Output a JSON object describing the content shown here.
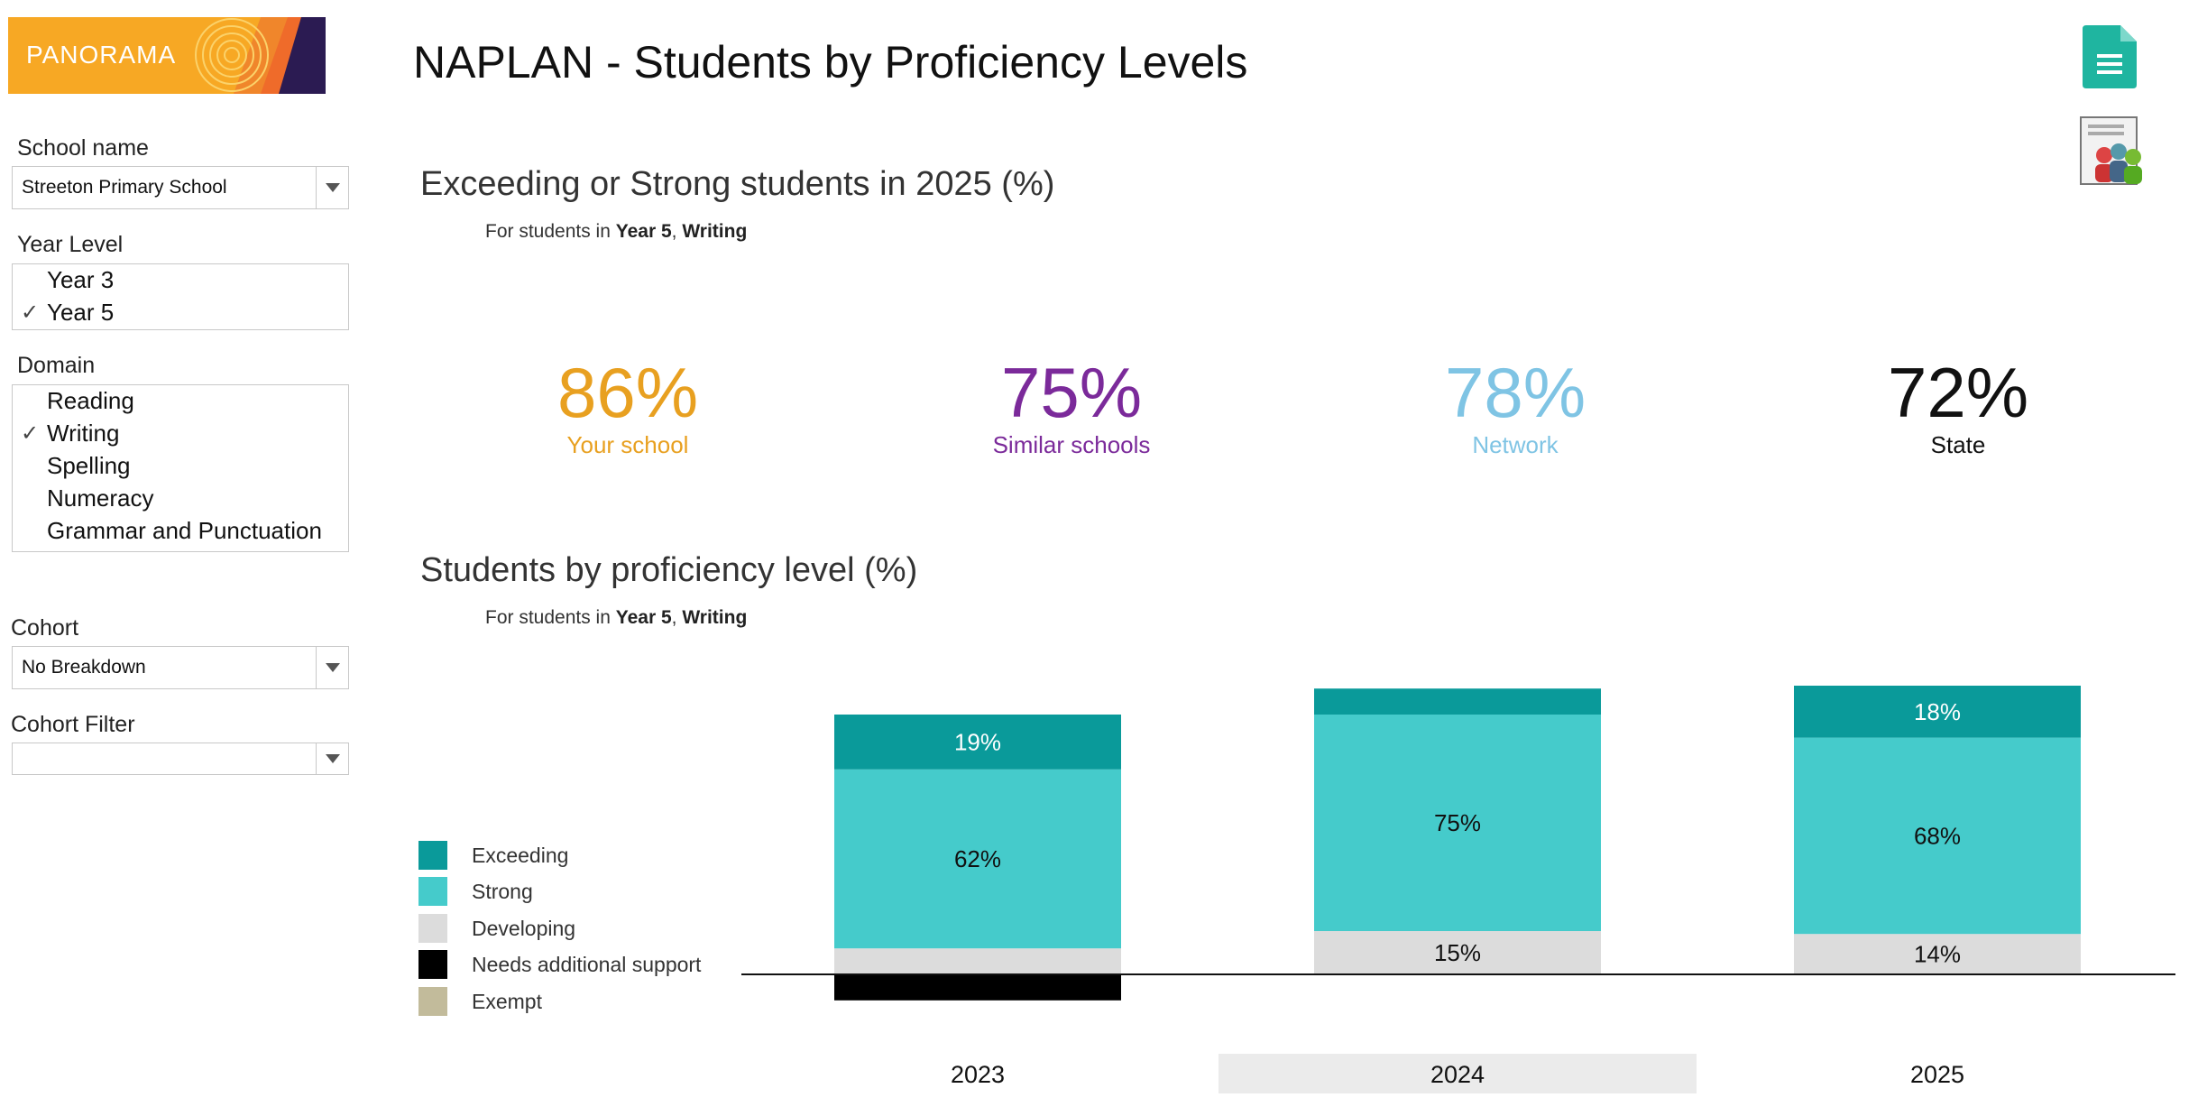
{
  "app": {
    "logo_text": "PANORAMA",
    "title": "NAPLAN - Students by Proficiency Levels"
  },
  "icons": {
    "report": "document-icon",
    "users": "users-report-icon"
  },
  "sidebar": {
    "school": {
      "label": "School name",
      "value": "Streeton Primary School"
    },
    "year_level": {
      "label": "Year Level",
      "items": [
        {
          "label": "Year 3",
          "checked": false
        },
        {
          "label": "Year 5",
          "checked": true
        }
      ]
    },
    "domain": {
      "label": "Domain",
      "items": [
        {
          "label": "Reading",
          "checked": false
        },
        {
          "label": "Writing",
          "checked": true
        },
        {
          "label": "Spelling",
          "checked": false
        },
        {
          "label": "Numeracy",
          "checked": false
        },
        {
          "label": "Grammar and Punctuation",
          "checked": false
        }
      ]
    },
    "cohort": {
      "label": "Cohort",
      "value": "No Breakdown"
    },
    "cohort_filter": {
      "label": "Cohort Filter",
      "value": ""
    }
  },
  "kpi_section": {
    "title": "Exceeding or Strong students in 2025 (%)",
    "subtitle_prefix": "For students in",
    "subtitle_year": "Year 5",
    "subtitle_sep": ",",
    "subtitle_domain": "Writing",
    "items": [
      {
        "value": "86%",
        "label": "Your school",
        "color": "#e8a020"
      },
      {
        "value": "75%",
        "label": "Similar schools",
        "color": "#7b2a9a"
      },
      {
        "value": "78%",
        "label": "Network",
        "color": "#7fc4e4"
      },
      {
        "value": "72%",
        "label": "State",
        "color": "#111111"
      }
    ]
  },
  "chart_section": {
    "title": "Students by proficiency level (%)",
    "subtitle_prefix": "For students in",
    "subtitle_year": "Year 5",
    "subtitle_sep": ",",
    "subtitle_domain": "Writing"
  },
  "chart_data": {
    "type": "bar",
    "stacked": true,
    "diverging": true,
    "categories": [
      "2023",
      "2024",
      "2025"
    ],
    "highlighted_category": "2024",
    "legend": [
      {
        "name": "Exceeding",
        "color": "#0a9a9a"
      },
      {
        "name": "Strong",
        "color": "#45cbcb"
      },
      {
        "name": "Developing",
        "color": "#dcdcdc"
      },
      {
        "name": "Needs additional support",
        "color": "#000000"
      },
      {
        "name": "Exempt",
        "color": "#c2bb9b"
      }
    ],
    "series": [
      {
        "name": "Exceeding",
        "values": [
          19,
          9,
          18
        ],
        "labels": [
          "19%",
          "",
          "18%"
        ]
      },
      {
        "name": "Strong",
        "values": [
          62,
          75,
          68
        ],
        "labels": [
          "62%",
          "75%",
          "68%"
        ]
      },
      {
        "name": "Developing",
        "values": [
          9,
          15,
          14
        ],
        "labels": [
          "",
          "15%",
          "14%"
        ]
      },
      {
        "name": "Needs additional support",
        "values": [
          9,
          0,
          0
        ],
        "labels": [
          "",
          "",
          ""
        ]
      },
      {
        "name": "Exempt",
        "values": [
          0,
          0,
          0
        ],
        "labels": [
          "",
          "",
          ""
        ]
      }
    ]
  }
}
